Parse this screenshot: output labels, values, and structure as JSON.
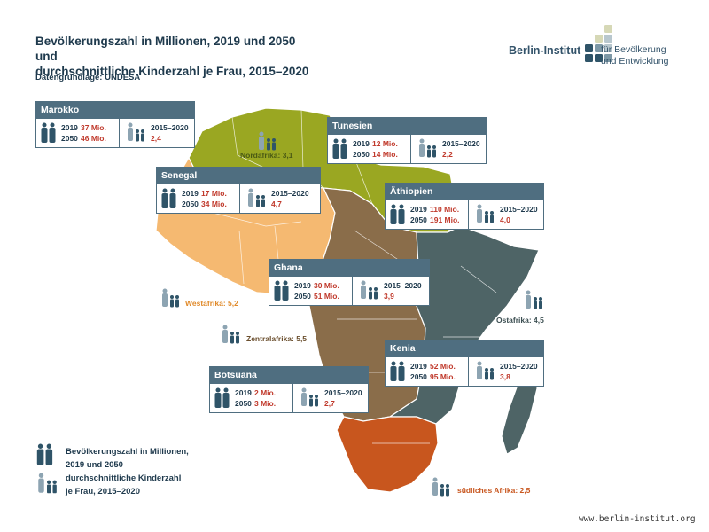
{
  "header": {
    "title_line1": "Bevölkerungszahl in Millionen, 2019 und 2050 und",
    "title_line2": "durchschnittliche Kinderzahl je Frau, 2015–2020",
    "source": "Datengrundlage: UNDESA"
  },
  "brand": {
    "name": "Berlin-Institut",
    "sub_line1": "für Bevölkerung",
    "sub_line2": "und Entwicklung"
  },
  "colors": {
    "nordafrika": "#9aa722",
    "westafrika": "#f5b971",
    "zentralafrika": "#8a6d4a",
    "ostafrika": "#4e6466",
    "suedafrika": "#c8561e",
    "card_header": "#4f6e80",
    "value_red": "#c0392b"
  },
  "countries": [
    {
      "id": "marokko",
      "name": "Marokko",
      "y2019_label": "2019",
      "pop2019": "37 Mio.",
      "y2050_label": "2050",
      "pop2050": "46 Mio.",
      "period": "2015–2020",
      "fertility": "2,4"
    },
    {
      "id": "tunesien",
      "name": "Tunesien",
      "y2019_label": "2019",
      "pop2019": "12 Mio.",
      "y2050_label": "2050",
      "pop2050": "14 Mio.",
      "period": "2015–2020",
      "fertility": "2,2"
    },
    {
      "id": "senegal",
      "name": "Senegal",
      "y2019_label": "2019",
      "pop2019": "17 Mio.",
      "y2050_label": "2050",
      "pop2050": "34 Mio.",
      "period": "2015–2020",
      "fertility": "4,7"
    },
    {
      "id": "aethiopien",
      "name": "Äthiopien",
      "y2019_label": "2019",
      "pop2019": "110 Mio.",
      "y2050_label": "2050",
      "pop2050": "191 Mio.",
      "period": "2015–2020",
      "fertility": "4,0"
    },
    {
      "id": "ghana",
      "name": "Ghana",
      "y2019_label": "2019",
      "pop2019": "30 Mio.",
      "y2050_label": "2050",
      "pop2050": "51 Mio.",
      "period": "2015–2020",
      "fertility": "3,9"
    },
    {
      "id": "kenia",
      "name": "Kenia",
      "y2019_label": "2019",
      "pop2019": "52 Mio.",
      "y2050_label": "2050",
      "pop2050": "95 Mio.",
      "period": "2015–2020",
      "fertility": "3,8"
    },
    {
      "id": "botsuana",
      "name": "Botsuana",
      "y2019_label": "2019",
      "pop2019": "2 Mio.",
      "y2050_label": "2050",
      "pop2050": "3 Mio.",
      "period": "2015–2020",
      "fertility": "2,7"
    }
  ],
  "regions": {
    "nordafrika": "Nordafrika: 3,1",
    "westafrika": "Westafrika: 5,2",
    "zentralafrika": "Zentralafrika: 5,5",
    "ostafrika": "Ostafrika: 4,5",
    "suedafrika": "südliches Afrika: 2,5"
  },
  "legend": {
    "pop_line1": "Bevölkerungszahl in Millionen,",
    "pop_line2": "2019 und 2050",
    "fert_line1": "durchschnittliche Kinderzahl",
    "fert_line2": "je Frau, 2015–2020"
  },
  "footer": {
    "url": "www.berlin-institut.org"
  }
}
